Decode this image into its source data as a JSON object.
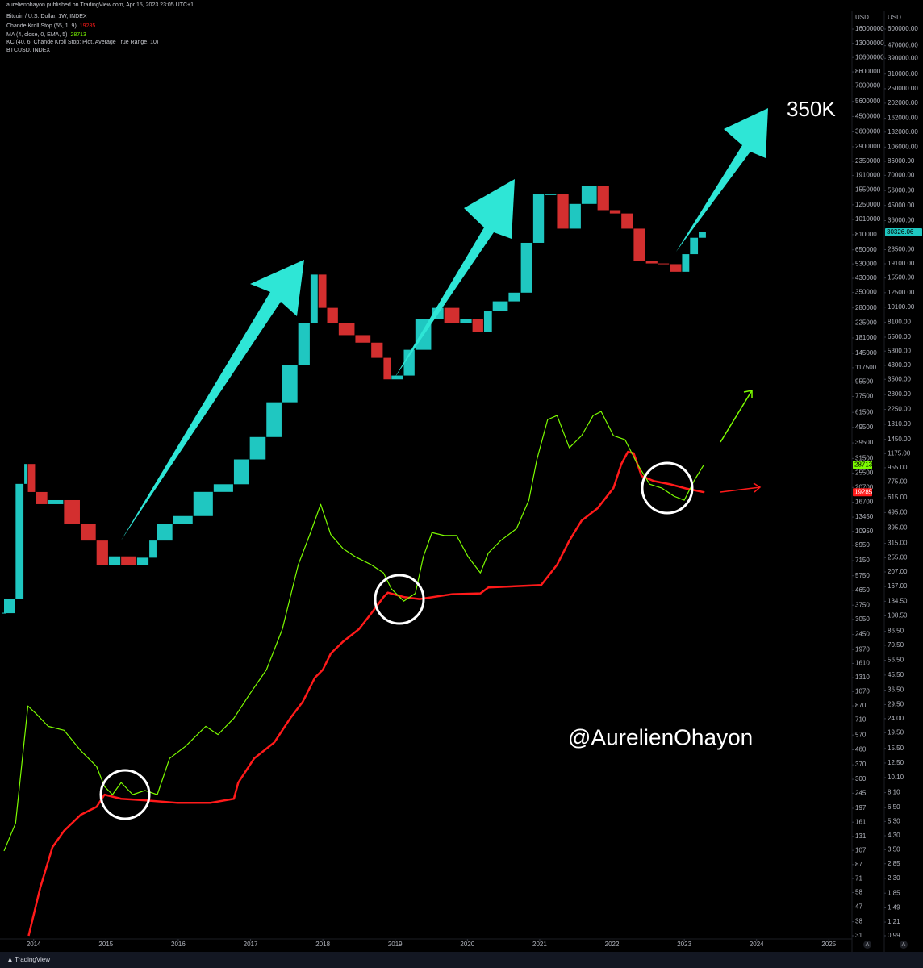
{
  "header": {
    "publisher": "aurelienohayon published on TradingView.com, Apr 15, 2023 23:05 UTC+1"
  },
  "chart_data": {
    "type": "line",
    "ylabel": "USD",
    "y2label": "USD",
    "ylog": true,
    "y2log": true,
    "xlim": [
      2013.59,
      2025.32
    ],
    "xticks": [
      2014,
      2015,
      2016,
      2017,
      2018,
      2019,
      2020,
      2021,
      2022,
      2023,
      2024,
      2025
    ],
    "ylim": [
      31,
      16000000
    ],
    "yticks": [
      16000000,
      13000000,
      10600000,
      8600000,
      7000000,
      5600000,
      4500000,
      3600000,
      2900000,
      2350000,
      1910000,
      1550000,
      1250000,
      1010000,
      810000,
      650000,
      530000,
      430000,
      350000,
      280000,
      225000,
      181000,
      145000,
      117500,
      95500,
      77500,
      61500,
      49500,
      39500,
      31500,
      25500,
      20700,
      16700,
      13450,
      10950,
      8950,
      7150,
      5750,
      4650,
      3750,
      3050,
      2450,
      1970,
      1610,
      1310,
      1070,
      870,
      710,
      570,
      460,
      370,
      300,
      245,
      197,
      161,
      131,
      107,
      87,
      71,
      58,
      47,
      38,
      31
    ],
    "y2lim": [
      0.99,
      600000
    ],
    "y2ticks": [
      {
        "value": 600000,
        "label": "600000.00"
      },
      {
        "value": 470000,
        "label": "470000.00"
      },
      {
        "value": 390000,
        "label": "390000.00"
      },
      {
        "value": 310000,
        "label": "310000.00"
      },
      {
        "value": 250000,
        "label": "250000.00"
      },
      {
        "value": 202000,
        "label": "202000.00"
      },
      {
        "value": 162000,
        "label": "162000.00"
      },
      {
        "value": 132000,
        "label": "132000.00"
      },
      {
        "value": 106000,
        "label": "106000.00"
      },
      {
        "value": 86000,
        "label": "86000.00"
      },
      {
        "value": 70000,
        "label": "70000.00"
      },
      {
        "value": 56000,
        "label": "56000.00"
      },
      {
        "value": 45000,
        "label": "45000.00"
      },
      {
        "value": 36000,
        "label": "36000.00"
      },
      {
        "value": 23500,
        "label": "23500.00"
      },
      {
        "value": 19100,
        "label": "19100.00"
      },
      {
        "value": 15500,
        "label": "15500.00"
      },
      {
        "value": 12500,
        "label": "12500.00"
      },
      {
        "value": 10100,
        "label": "10100.00"
      },
      {
        "value": 8100,
        "label": "8100.00"
      },
      {
        "value": 6500,
        "label": "6500.00"
      },
      {
        "value": 5300,
        "label": "5300.00"
      },
      {
        "value": 4300,
        "label": "4300.00"
      },
      {
        "value": 3500,
        "label": "3500.00"
      },
      {
        "value": 2800,
        "label": "2800.00"
      },
      {
        "value": 2250,
        "label": "2250.00"
      },
      {
        "value": 1810,
        "label": "1810.00"
      },
      {
        "value": 1450,
        "label": "1450.00"
      },
      {
        "value": 1175,
        "label": "1175.00"
      },
      {
        "value": 955,
        "label": "955.00"
      },
      {
        "value": 775,
        "label": "775.00"
      },
      {
        "value": 615,
        "label": "615.00"
      },
      {
        "value": 495,
        "label": "495.00"
      },
      {
        "value": 395,
        "label": "395.00"
      },
      {
        "value": 315,
        "label": "315.00"
      },
      {
        "value": 255,
        "label": "255.00"
      },
      {
        "value": 207,
        "label": "207.00"
      },
      {
        "value": 167,
        "label": "167.00"
      },
      {
        "value": 134.5,
        "label": "134.50"
      },
      {
        "value": 108.5,
        "label": "108.50"
      },
      {
        "value": 86.5,
        "label": "86.50"
      },
      {
        "value": 70.5,
        "label": "70.50"
      },
      {
        "value": 56.5,
        "label": "56.50"
      },
      {
        "value": 45.5,
        "label": "45.50"
      },
      {
        "value": 36.5,
        "label": "36.50"
      },
      {
        "value": 29.5,
        "label": "29.50"
      },
      {
        "value": 24,
        "label": "24.00"
      },
      {
        "value": 19.5,
        "label": "19.50"
      },
      {
        "value": 15.5,
        "label": "15.50"
      },
      {
        "value": 12.5,
        "label": "12.50"
      },
      {
        "value": 10.1,
        "label": "10.10"
      },
      {
        "value": 8.1,
        "label": "8.10"
      },
      {
        "value": 6.5,
        "label": "6.50"
      },
      {
        "value": 5.3,
        "label": "5.30"
      },
      {
        "value": 4.3,
        "label": "4.30"
      },
      {
        "value": 3.5,
        "label": "3.50"
      },
      {
        "value": 2.85,
        "label": "2.85"
      },
      {
        "value": 2.3,
        "label": "2.30"
      },
      {
        "value": 1.85,
        "label": "1.85"
      },
      {
        "value": 1.49,
        "label": "1.49"
      },
      {
        "value": 1.21,
        "label": "1.21"
      },
      {
        "value": 0.99,
        "label": "0.99"
      }
    ],
    "series": [
      {
        "name": "Bitcoin / U.S. Dollar, 1W, INDEX",
        "style": "candles",
        "axis": "y2",
        "color": "#1fc7c1",
        "down_color": "#d32f2f",
        "x": [
          2013.59,
          2013.75,
          2013.87,
          2013.92,
          2014.03,
          2014.2,
          2014.42,
          2014.65,
          2014.87,
          2015.04,
          2015.21,
          2015.43,
          2015.6,
          2015.71,
          2015.93,
          2016.21,
          2016.49,
          2016.77,
          2016.99,
          2017.22,
          2017.44,
          2017.66,
          2017.83,
          2017.94,
          2018.06,
          2018.22,
          2018.45,
          2018.67,
          2018.84,
          2018.95,
          2019.12,
          2019.28,
          2019.51,
          2019.68,
          2019.9,
          2020.07,
          2020.23,
          2020.35,
          2020.57,
          2020.74,
          2020.91,
          2021.07,
          2021.24,
          2021.41,
          2021.58,
          2021.8,
          2021.97,
          2022.13,
          2022.3,
          2022.47,
          2022.64,
          2022.8,
          2022.97,
          2023.08,
          2023.2,
          2023.31
        ],
        "values": [
          113,
          140,
          754,
          1010,
          669,
          560,
          594,
          417,
          328,
          230,
          260,
          230,
          255,
          328,
          420,
          470,
          670,
          750,
          1080,
          1500,
          2500,
          4300,
          8000,
          16300,
          10000,
          8000,
          6700,
          6000,
          4800,
          3500,
          3700,
          5400,
          8500,
          10000,
          8000,
          8500,
          7000,
          9500,
          11000,
          12500,
          26000,
          53000,
          53000,
          32000,
          46000,
          60000,
          42000,
          40000,
          32000,
          20000,
          19200,
          19000,
          17000,
          22000,
          28000,
          30326.06
        ]
      },
      {
        "name": "Chande Kroll Stop (55, 1, 9)",
        "axis": "y",
        "color": "#ff1a1a",
        "x": [
          2013.93,
          2014.09,
          2014.26,
          2014.42,
          2014.65,
          2014.87,
          2014.98,
          2015.21,
          2015.54,
          2015.99,
          2016.44,
          2016.77,
          2016.83,
          2017.05,
          2017.33,
          2017.55,
          2017.72,
          2017.89,
          2018.0,
          2018.11,
          2018.28,
          2018.5,
          2018.67,
          2018.84,
          2018.9,
          2019.12,
          2019.34,
          2019.79,
          2020.18,
          2020.29,
          2021.02,
          2021.24,
          2021.41,
          2021.58,
          2021.8,
          2022.02,
          2022.13,
          2022.22,
          2022.3,
          2022.41,
          2022.58,
          2022.8,
          2023.02,
          2023.28
        ],
        "values": [
          31,
          62,
          112,
          142,
          179,
          201,
          240,
          226,
          221,
          213,
          213,
          226,
          286,
          406,
          513,
          728,
          920,
          1310,
          1470,
          1860,
          2210,
          2650,
          3330,
          4220,
          4500,
          4220,
          4100,
          4400,
          4450,
          4850,
          5020,
          6740,
          9570,
          12800,
          15300,
          20500,
          29100,
          34700,
          34000,
          24400,
          22700,
          21700,
          20400,
          19285
        ]
      },
      {
        "name": "MA (4, close, 0, EMA, 5)",
        "axis": "y",
        "color": "#7cfc00",
        "x": [
          2013.59,
          2013.75,
          2013.92,
          2014.03,
          2014.2,
          2014.42,
          2014.65,
          2014.87,
          2014.98,
          2015.09,
          2015.21,
          2015.37,
          2015.54,
          2015.71,
          2015.88,
          2016.1,
          2016.38,
          2016.55,
          2016.77,
          2016.99,
          2017.22,
          2017.44,
          2017.66,
          2017.83,
          2017.97,
          2018.11,
          2018.28,
          2018.45,
          2018.67,
          2018.84,
          2018.95,
          2019.12,
          2019.28,
          2019.39,
          2019.51,
          2019.68,
          2019.85,
          2020.01,
          2020.18,
          2020.29,
          2020.46,
          2020.68,
          2020.85,
          2020.96,
          2021.11,
          2021.24,
          2021.41,
          2021.58,
          2021.74,
          2021.85,
          2022.02,
          2022.18,
          2022.35,
          2022.52,
          2022.69,
          2022.86,
          2023.0,
          2023.14,
          2023.27
        ],
        "values": [
          106,
          159,
          869,
          780,
          647,
          611,
          455,
          361,
          270,
          240,
          286,
          240,
          255,
          240,
          406,
          484,
          647,
          574,
          728,
          1035,
          1470,
          2650,
          6740,
          10750,
          16200,
          10450,
          8520,
          7570,
          6740,
          5990,
          4740,
          3980,
          4450,
          7570,
          10750,
          10300,
          10300,
          7570,
          5990,
          8000,
          9570,
          11400,
          17200,
          30900,
          55400,
          58800,
          36800,
          43900,
          58800,
          62300,
          43900,
          41400,
          29100,
          21700,
          20500,
          18200,
          17200,
          23000,
          28713
        ]
      }
    ],
    "legend_extra": [
      "KC (40, 6, Chande Kroll Stop: Plot, Average True Range, 10)",
      "BTCUSD, INDEX"
    ],
    "annotations": [
      "350K",
      "@AurelienOhayon"
    ],
    "scale_buttons": [
      "A",
      "A"
    ]
  },
  "footer": {
    "brand": "TradingView"
  }
}
